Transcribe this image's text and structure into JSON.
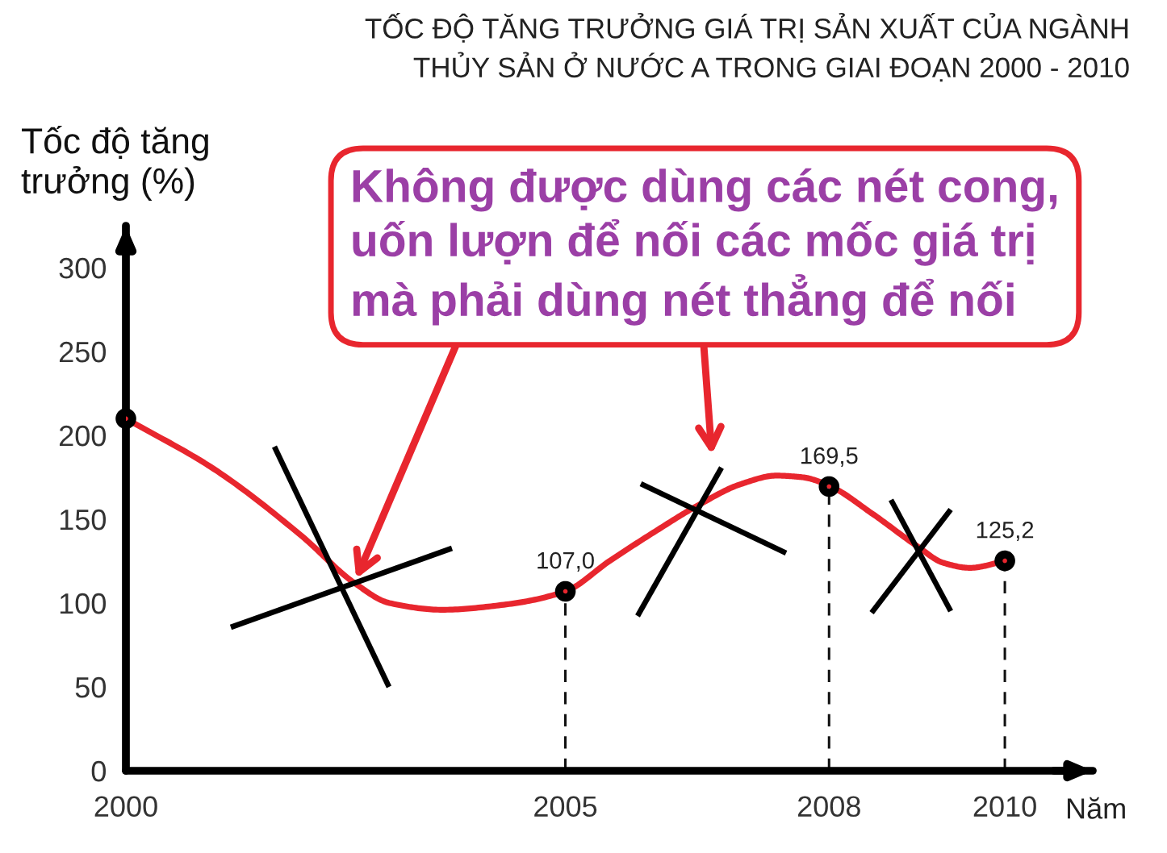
{
  "chart_data": {
    "type": "line",
    "title": "TỐC ĐỘ TĂNG TRƯỞNG GIÁ TRỊ SẢN XUẤT CỦA NGÀNH\nTHỦY SẢN Ở NƯỚC A TRONG GIAI ĐOẠN 2000 - 2010",
    "xlabel": "Năm",
    "ylabel": "Tốc độ tăng\ntrưởng (%)",
    "series": [
      {
        "color": "#e8262e",
        "x": [
          2000,
          2001,
          2002,
          2002.6,
          2003,
          2003.6,
          2004.3,
          2005,
          2005.5,
          2006,
          2006.5,
          2007,
          2007.4,
          2007.7,
          2008,
          2008.5,
          2009,
          2009.3,
          2009.6,
          2010
        ],
        "values": [
          210,
          180,
          140,
          112,
          100,
          96,
          99,
          107,
          125,
          142,
          158,
          171,
          176,
          175,
          170,
          153,
          134,
          124,
          121,
          125
        ]
      },
      {
        "type": "scatter",
        "color": "#000000",
        "marker": "circle",
        "x": [
          2000,
          2005,
          2008,
          2010
        ],
        "values": [
          210,
          107.0,
          169.5,
          125.2
        ],
        "value_labels": [
          null,
          "107,0",
          "169,5",
          "125,2"
        ]
      }
    ],
    "xlim": [
      2000,
      2011
    ],
    "xticks": [
      2000,
      2005,
      2008,
      2010
    ],
    "ylim": [
      0,
      325
    ],
    "yticks": [
      0,
      50,
      100,
      150,
      200,
      250,
      300
    ],
    "line_style": "solid",
    "ref_lines": [
      {
        "axis": "x",
        "value": 2005,
        "line_style": "dashed"
      },
      {
        "axis": "x",
        "value": 2008,
        "line_style": "dashed"
      },
      {
        "axis": "x",
        "value": 2010,
        "line_style": "dashed"
      }
    ],
    "annotations": [
      {
        "text": "Không được dùng các nét cong,\nuốn lượn để nối các mốc giá trị\nmà phải dùng nét thẳng để nối",
        "x": 2002.6,
        "y": 112
      }
    ]
  }
}
